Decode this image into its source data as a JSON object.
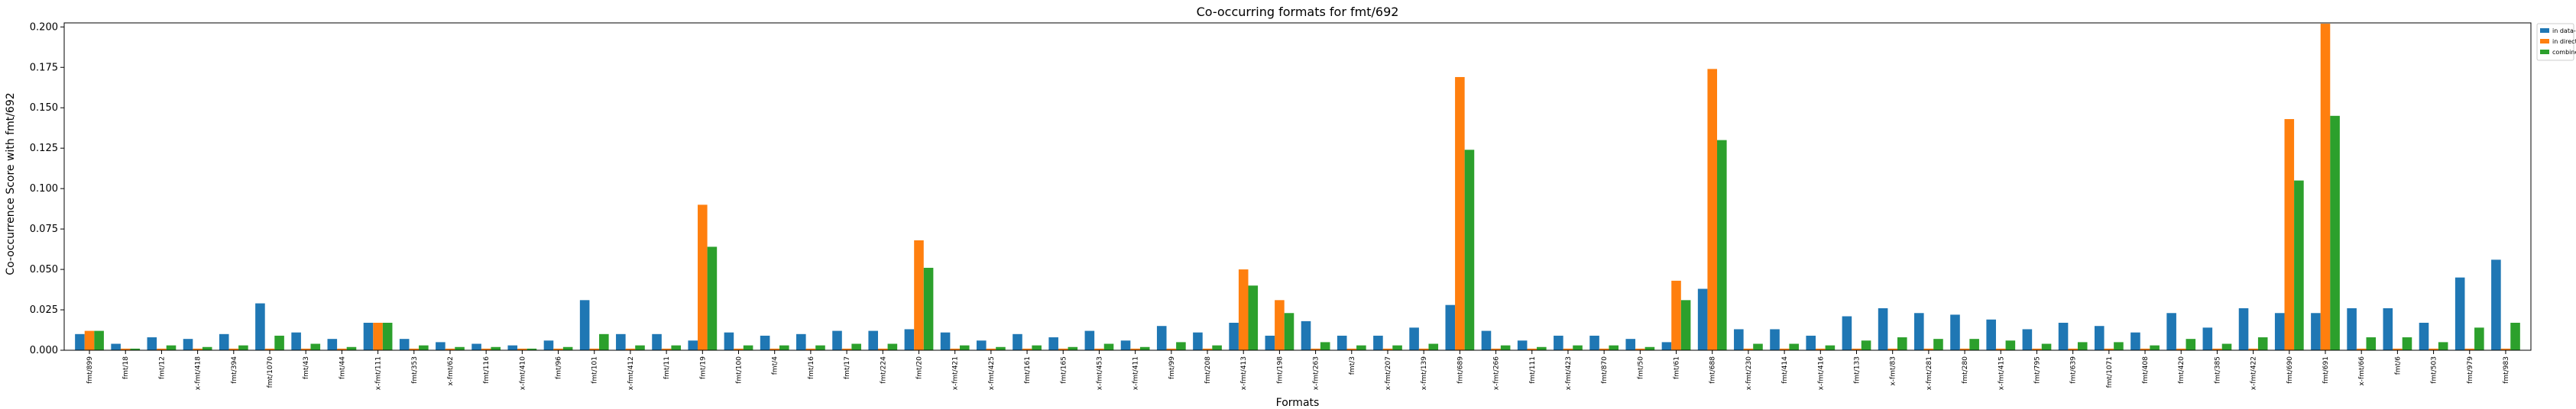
{
  "chart_data": {
    "type": "bar",
    "title": "Co-occurring formats for fmt/692",
    "xlabel": "Formats",
    "ylabel": "Co-occurrence Score with fmt/692",
    "ylim": [
      0,
      0.2025
    ],
    "yticks": [
      "0.000",
      "0.025",
      "0.050",
      "0.075",
      "0.100",
      "0.125",
      "0.150",
      "0.175",
      "0.200"
    ],
    "ytick_values": [
      0,
      0.025,
      0.05,
      0.075,
      0.1,
      0.125,
      0.15,
      0.175,
      0.2
    ],
    "grid": false,
    "legend_position": "top-right, outside plot",
    "categories": [
      "fmt/899",
      "fmt/18",
      "fmt/12",
      "x-fmt/418",
      "fmt/394",
      "fmt/1070",
      "fmt/43",
      "fmt/44",
      "x-fmt/111",
      "fmt/353",
      "x-fmt/62",
      "fmt/116",
      "x-fmt/410",
      "fmt/96",
      "fmt/101",
      "x-fmt/412",
      "fmt/11",
      "fmt/19",
      "fmt/100",
      "fmt/4",
      "fmt/16",
      "fmt/17",
      "fmt/224",
      "fmt/20",
      "x-fmt/421",
      "x-fmt/425",
      "fmt/161",
      "fmt/165",
      "x-fmt/453",
      "x-fmt/411",
      "fmt/99",
      "fmt/208",
      "x-fmt/413",
      "fmt/198",
      "x-fmt/263",
      "fmt/3",
      "x-fmt/207",
      "x-fmt/139",
      "fmt/689",
      "x-fmt/266",
      "fmt/111",
      "x-fmt/423",
      "fmt/870",
      "fmt/50",
      "fmt/61",
      "fmt/688",
      "x-fmt/230",
      "fmt/414",
      "x-fmt/416",
      "fmt/133",
      "x-fmt/83",
      "x-fmt/281",
      "fmt/280",
      "x-fmt/415",
      "fmt/795",
      "fmt/639",
      "fmt/1071",
      "fmt/408",
      "fmt/420",
      "fmt/385",
      "x-fmt/422",
      "fmt/690",
      "fmt/691",
      "x-fmt/66",
      "fmt/6",
      "fmt/503",
      "fmt/979",
      "fmt/983"
    ],
    "series": [
      {
        "name": "in data-objects",
        "color": "#1f77b4",
        "values": [
          0.01,
          0.004,
          0.008,
          0.007,
          0.01,
          0.029,
          0.011,
          0.007,
          0.017,
          0.007,
          0.005,
          0.004,
          0.003,
          0.006,
          0.031,
          0.01,
          0.01,
          0.006,
          0.011,
          0.009,
          0.01,
          0.012,
          0.012,
          0.013,
          0.011,
          0.006,
          0.01,
          0.008,
          0.012,
          0.006,
          0.015,
          0.011,
          0.017,
          0.009,
          0.018,
          0.009,
          0.009,
          0.014,
          0.028,
          0.012,
          0.006,
          0.009,
          0.009,
          0.007,
          0.005,
          0.038,
          0.013,
          0.013,
          0.009,
          0.021,
          0.026,
          0.023,
          0.022,
          0.019,
          0.013,
          0.017,
          0.015,
          0.011,
          0.023,
          0.014,
          0.026,
          0.023,
          0.023,
          0.026,
          0.026,
          0.017,
          0.045,
          0.056
        ]
      },
      {
        "name": "in directories",
        "color": "#ff7f0e",
        "values": [
          0.012,
          0.001,
          0.001,
          0.001,
          0.001,
          0.001,
          0.001,
          0.001,
          0.017,
          0.001,
          0.001,
          0.001,
          0.001,
          0.001,
          0.001,
          0.001,
          0.001,
          0.09,
          0.001,
          0.001,
          0.001,
          0.001,
          0.001,
          0.068,
          0.001,
          0.001,
          0.001,
          0.001,
          0.001,
          0.001,
          0.001,
          0.001,
          0.05,
          0.031,
          0.001,
          0.001,
          0.001,
          0.001,
          0.169,
          0.001,
          0.001,
          0.001,
          0.001,
          0.001,
          0.043,
          0.174,
          0.001,
          0.001,
          0.001,
          0.001,
          0.001,
          0.001,
          0.001,
          0.001,
          0.001,
          0.001,
          0.001,
          0.001,
          0.001,
          0.001,
          0.001,
          0.143,
          0.202,
          0.001,
          0.001,
          0.001,
          0.001,
          0.001
        ]
      },
      {
        "name": "combined",
        "color": "#2ca02c",
        "values": [
          0.012,
          0.001,
          0.003,
          0.002,
          0.003,
          0.009,
          0.004,
          0.002,
          0.017,
          0.003,
          0.002,
          0.002,
          0.001,
          0.002,
          0.01,
          0.003,
          0.003,
          0.064,
          0.003,
          0.003,
          0.003,
          0.004,
          0.004,
          0.051,
          0.003,
          0.002,
          0.003,
          0.002,
          0.004,
          0.002,
          0.005,
          0.003,
          0.04,
          0.023,
          0.005,
          0.003,
          0.003,
          0.004,
          0.124,
          0.003,
          0.002,
          0.003,
          0.003,
          0.002,
          0.031,
          0.13,
          0.004,
          0.004,
          0.003,
          0.006,
          0.008,
          0.007,
          0.007,
          0.006,
          0.004,
          0.005,
          0.005,
          0.003,
          0.007,
          0.004,
          0.008,
          0.105,
          0.145,
          0.008,
          0.008,
          0.005,
          0.014,
          0.017
        ]
      }
    ]
  }
}
